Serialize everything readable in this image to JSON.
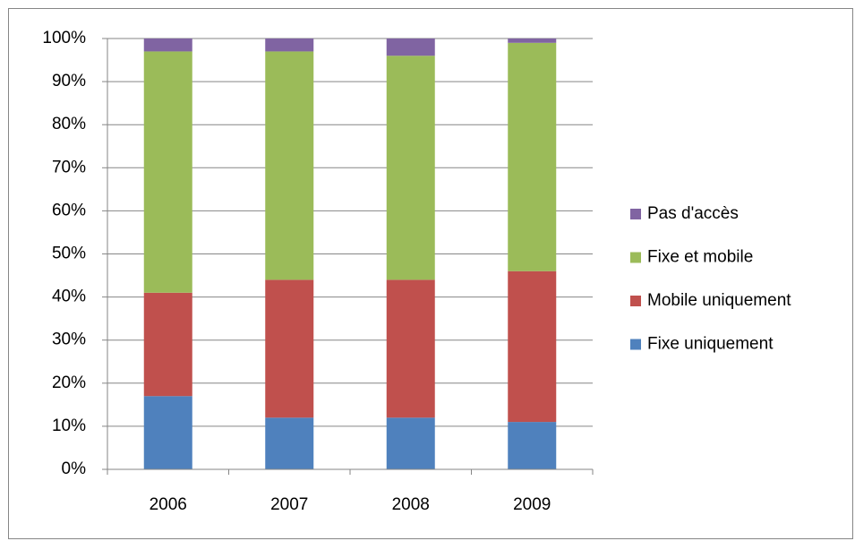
{
  "chart_data": {
    "type": "stacked_bar",
    "categories": [
      "2006",
      "2007",
      "2008",
      "2009"
    ],
    "series": [
      {
        "name": "Fixe uniquement",
        "color": "#4f81bd",
        "values": [
          17,
          12,
          12,
          11
        ]
      },
      {
        "name": "Mobile uniquement",
        "color": "#c0504d",
        "values": [
          24,
          32,
          32,
          35
        ]
      },
      {
        "name": "Fixe et mobile",
        "color": "#9bbb59",
        "values": [
          56,
          53,
          52,
          53
        ]
      },
      {
        "name": "Pas d'accès",
        "color": "#8064a2",
        "values": [
          3,
          3,
          4,
          1
        ]
      }
    ],
    "ylim": [
      0,
      100
    ],
    "yticks": [
      {
        "value": 0,
        "label": "0%"
      },
      {
        "value": 10,
        "label": "10%"
      },
      {
        "value": 20,
        "label": "20%"
      },
      {
        "value": 30,
        "label": "30%"
      },
      {
        "value": 40,
        "label": "40%"
      },
      {
        "value": 50,
        "label": "50%"
      },
      {
        "value": 60,
        "label": "60%"
      },
      {
        "value": 70,
        "label": "70%"
      },
      {
        "value": 80,
        "label": "80%"
      },
      {
        "value": 90,
        "label": "90%"
      },
      {
        "value": 100,
        "label": "100%"
      }
    ],
    "grid": true,
    "legend": "right"
  }
}
